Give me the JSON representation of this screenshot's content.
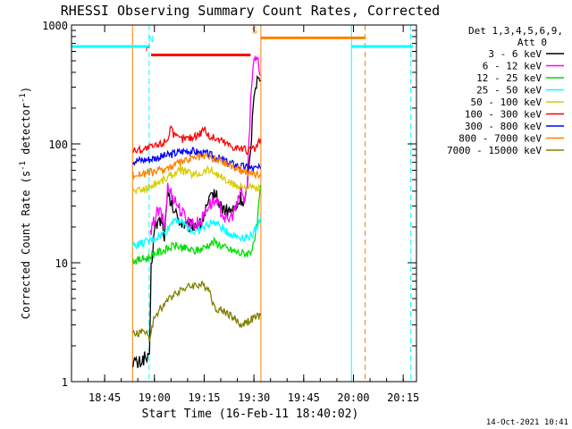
{
  "chart_data": {
    "type": "line",
    "title": "RHESSI Observing Summary Count Rates, Corrected",
    "xlabel": "Start Time (16-Feb-11 18:40:02)",
    "ylabel": "Corrected Count Rate (s",
    "ylabel_sup1": "-1",
    "ylabel_mid": " detector",
    "ylabel_sup2": "-1",
    "ylabel_end": ")",
    "y_scale": "log",
    "ylim": [
      1,
      1000
    ],
    "xlim_minutes": [
      -5,
      99
    ],
    "x_ticks": [
      {
        "t": 5,
        "label": "18:45"
      },
      {
        "t": 20,
        "label": "19:00"
      },
      {
        "t": 35,
        "label": "19:15"
      },
      {
        "t": 50,
        "label": "19:30"
      },
      {
        "t": 65,
        "label": "19:45"
      },
      {
        "t": 80,
        "label": "20:00"
      },
      {
        "t": 95,
        "label": "20:15"
      }
    ],
    "y_ticks": [
      {
        "v": 1,
        "label": "1"
      },
      {
        "v": 10,
        "label": "10"
      },
      {
        "v": 100,
        "label": "100"
      },
      {
        "v": 1000,
        "label": "1000"
      }
    ],
    "legend": {
      "placement": "top-right",
      "header": [
        "Det 1,3,4,5,6,9,",
        "Att 0"
      ],
      "entries": [
        {
          "label": "3 - 6 keV",
          "color": "#000000"
        },
        {
          "label": "6 - 12 keV",
          "color": "#ff00ff"
        },
        {
          "label": "12 - 25 keV",
          "color": "#00dd00"
        },
        {
          "label": "25 - 50 keV",
          "color": "#00ffff"
        },
        {
          "label": "50 - 100 keV",
          "color": "#d8cc00"
        },
        {
          "label": "100 - 300 keV",
          "color": "#ff0000"
        },
        {
          "label": "300 - 800 keV",
          "color": "#0000ff"
        },
        {
          "label": "800 - 7000 keV",
          "color": "#ff8000"
        },
        {
          "label": "7000 - 15000 keV",
          "color": "#808000"
        }
      ]
    },
    "flags": [
      {
        "label": "F",
        "color": "#ff0000",
        "t_start": 19,
        "t_end": 49,
        "value": 560,
        "label_t": 18,
        "label_value": 600
      },
      {
        "label": "N",
        "color": "#00ffff",
        "t_start": -5,
        "t_end": 18.4,
        "value": 660,
        "label_t": 19,
        "label_value": 720
      },
      {
        "label": "N",
        "color": "#00ffff",
        "t_start": 79.4,
        "t_end": 98,
        "value": 660,
        "label_t": null,
        "label_value": null
      },
      {
        "label": "S",
        "color": "#ff8000",
        "t_start": 52,
        "t_end": 83.5,
        "value": 780,
        "label_t": 50.2,
        "label_value": 850
      }
    ],
    "vertical_lines": [
      {
        "t": -5,
        "color": "#00ffff",
        "dashed": false
      },
      {
        "t": 18.4,
        "color": "#00ffff",
        "dashed": true
      },
      {
        "t": 79.4,
        "color": "#00ffff",
        "dashed": false
      },
      {
        "t": 97.3,
        "color": "#00ffff",
        "dashed": true
      },
      {
        "t": 13.4,
        "color": "#ff8000",
        "dashed": false
      },
      {
        "t": 52.1,
        "color": "#ff8000",
        "dashed": false
      },
      {
        "t": 83.5,
        "color": "#ff8000",
        "dashed": true
      }
    ],
    "series": [
      {
        "name": "3 - 6 keV",
        "color": "#000000",
        "x": [
          13.5,
          15,
          17,
          18.5,
          19,
          20,
          21,
          22,
          23,
          24,
          26,
          28,
          30,
          32,
          34,
          36,
          38,
          40,
          42,
          44,
          45,
          46,
          47,
          48,
          49,
          50,
          51,
          52
        ],
        "values": [
          1.5,
          1.4,
          1.6,
          1.5,
          9,
          19,
          22,
          23,
          17,
          37,
          27,
          22,
          20,
          21,
          21,
          30,
          40,
          30,
          27,
          28,
          30,
          35,
          32,
          40,
          90,
          280,
          350,
          340
        ]
      },
      {
        "name": "6 - 12 keV",
        "color": "#ff00ff",
        "x": [
          18.8,
          20,
          21,
          22,
          23,
          24,
          26,
          28,
          30,
          32,
          34,
          36,
          38,
          40,
          42,
          44,
          45,
          46,
          47,
          48,
          49,
          50,
          51,
          52
        ],
        "values": [
          17,
          23,
          27,
          26,
          20,
          43,
          35,
          27,
          23,
          21,
          22,
          30,
          33,
          28,
          22,
          27,
          30,
          42,
          33,
          45,
          230,
          530,
          560,
          380
        ]
      },
      {
        "name": "12 - 25 keV",
        "color": "#00dd00",
        "x": [
          13.5,
          15,
          18,
          20,
          22,
          24,
          26,
          28,
          30,
          32,
          34,
          36,
          38,
          40,
          42,
          44,
          46,
          48,
          49,
          50,
          51,
          52
        ],
        "values": [
          10.5,
          10.5,
          11,
          12,
          12.5,
          13,
          14,
          13.5,
          13,
          12.5,
          13,
          14,
          15,
          14,
          13,
          12.5,
          12,
          12,
          12.5,
          14,
          22,
          45
        ]
      },
      {
        "name": "25 - 50 keV",
        "color": "#00ffff",
        "x": [
          13.5,
          16,
          18,
          20,
          22,
          24,
          26,
          28,
          30,
          32,
          34,
          36,
          38,
          40,
          42,
          44,
          46,
          48,
          49,
          50,
          51,
          52
        ],
        "values": [
          14,
          14.5,
          15,
          16,
          17,
          19,
          24,
          22,
          20,
          18,
          19,
          21,
          22,
          20,
          18,
          17,
          16.5,
          16.5,
          17,
          18,
          20,
          24
        ]
      },
      {
        "name": "50 - 100 keV",
        "color": "#d8cc00",
        "x": [
          13.5,
          16,
          18,
          20,
          22,
          24,
          26,
          28,
          30,
          32,
          34,
          36,
          38,
          40,
          42,
          44,
          46,
          48,
          50,
          52
        ],
        "values": [
          40,
          41,
          43,
          46,
          49,
          52,
          57,
          60,
          58,
          55,
          57,
          61,
          58,
          53,
          48,
          45,
          44,
          43,
          42,
          42
        ]
      },
      {
        "name": "100 - 300 keV",
        "color": "#ff0000",
        "x": [
          13.5,
          16,
          18,
          20,
          22,
          24,
          25,
          26,
          28,
          30,
          32,
          34,
          35,
          36,
          38,
          40,
          42,
          44,
          46,
          48,
          50,
          51,
          52
        ],
        "values": [
          88,
          90,
          92,
          95,
          100,
          110,
          145,
          115,
          110,
          112,
          115,
          125,
          140,
          118,
          112,
          108,
          100,
          95,
          92,
          88,
          90,
          95,
          110
        ]
      },
      {
        "name": "300 - 800 keV",
        "color": "#0000ff",
        "x": [
          13.5,
          16,
          18,
          20,
          22,
          24,
          26,
          28,
          30,
          32,
          34,
          36,
          38,
          40,
          42,
          44,
          46,
          48,
          50,
          52
        ],
        "values": [
          72,
          73,
          74,
          76,
          78,
          80,
          83,
          86,
          88,
          86,
          84,
          82,
          78,
          74,
          70,
          67,
          65,
          63,
          62,
          62
        ]
      },
      {
        "name": "800 - 7000 keV",
        "color": "#ff8000",
        "x": [
          13.5,
          16,
          18,
          20,
          22,
          24,
          26,
          28,
          30,
          32,
          34,
          36,
          38,
          40,
          42,
          44,
          46,
          48,
          50,
          52
        ],
        "values": [
          55,
          56,
          57,
          58,
          60,
          63,
          66,
          70,
          73,
          76,
          78,
          78,
          75,
          72,
          68,
          64,
          60,
          58,
          56,
          56
        ]
      },
      {
        "name": "7000 - 15000 keV",
        "color": "#808000",
        "x": [
          13.5,
          16,
          17.5,
          18.5,
          20,
          22,
          24,
          26,
          28,
          30,
          32,
          34,
          36,
          37,
          38,
          40,
          42,
          44,
          46,
          48,
          50,
          51,
          52
        ],
        "values": [
          2.5,
          2.6,
          2.7,
          2.2,
          3.5,
          4.2,
          4.8,
          5.5,
          6,
          6.2,
          6.5,
          6.5,
          6.3,
          5.5,
          4.2,
          4,
          3.8,
          3.4,
          3.0,
          3.2,
          3.4,
          3.5,
          3.6
        ]
      }
    ]
  },
  "footer": {
    "timestamp": "14-Oct-2021 10:41"
  }
}
